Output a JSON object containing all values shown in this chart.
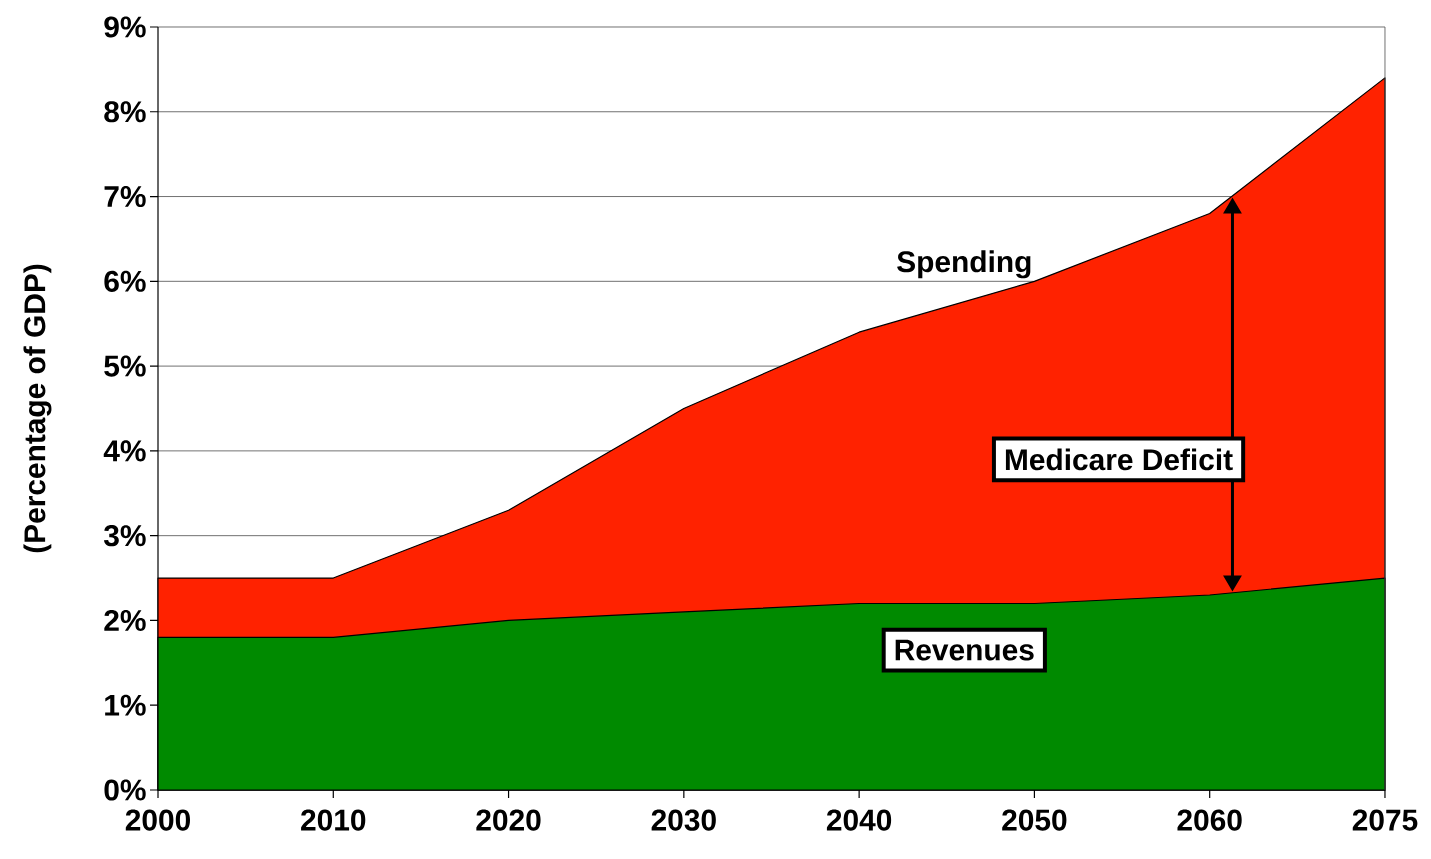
{
  "chart_data": {
    "type": "area",
    "ylabel": "(Percentage of GDP)",
    "categories": [
      "2000",
      "2010",
      "2020",
      "2030",
      "2040",
      "2050",
      "2060",
      "2075"
    ],
    "series": [
      {
        "name": "Spending",
        "color": "#ff2200",
        "values": [
          2.5,
          2.5,
          3.3,
          4.5,
          5.4,
          6.0,
          6.8,
          8.4
        ]
      },
      {
        "name": "Revenues",
        "color": "#008a00",
        "values": [
          1.8,
          1.8,
          2.0,
          2.1,
          2.2,
          2.2,
          2.3,
          2.5
        ]
      }
    ],
    "ylim": [
      0,
      9
    ],
    "yticks": [
      {
        "value": 0,
        "label": "0%"
      },
      {
        "value": 1,
        "label": "1%"
      },
      {
        "value": 2,
        "label": "2%"
      },
      {
        "value": 3,
        "label": "3%"
      },
      {
        "value": 4,
        "label": "4%"
      },
      {
        "value": 5,
        "label": "5%"
      },
      {
        "value": 6,
        "label": "6%"
      },
      {
        "value": 7,
        "label": "7%"
      },
      {
        "value": 8,
        "label": "8%"
      },
      {
        "value": 9,
        "label": "9%"
      }
    ],
    "grid": "y",
    "marker": "none",
    "annotations": [
      "Medicare Deficit"
    ]
  }
}
